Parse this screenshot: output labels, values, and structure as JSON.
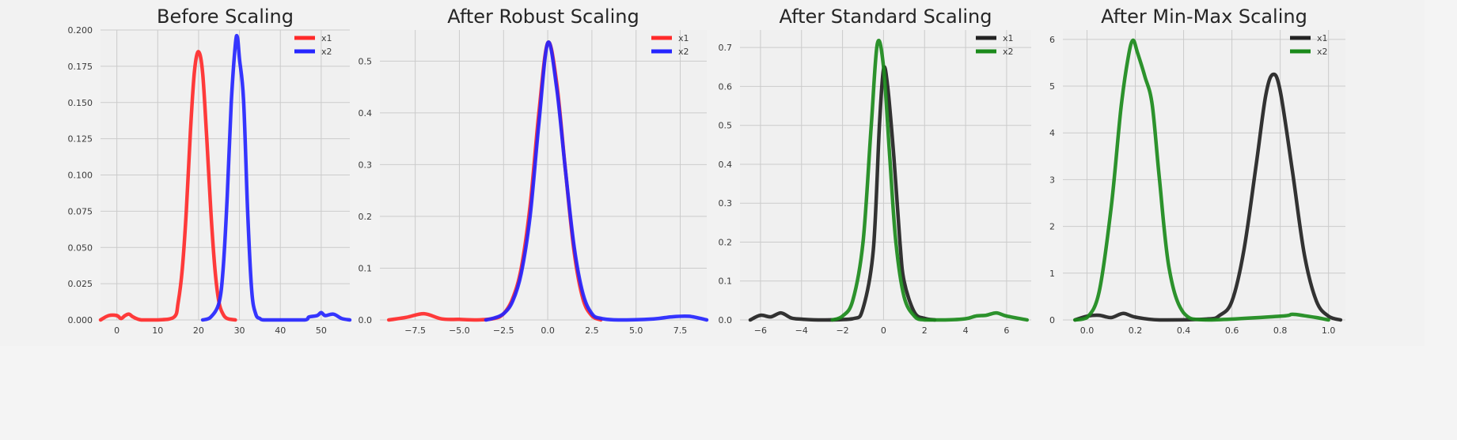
{
  "chart_data": [
    {
      "type": "line",
      "title": "Before Scaling",
      "xlabel": "",
      "ylabel": "",
      "xlim": [
        -4,
        57
      ],
      "ylim": [
        0,
        0.2
      ],
      "xticks": [
        0,
        10,
        20,
        30,
        40,
        50
      ],
      "yticks": [
        0.0,
        0.025,
        0.05,
        0.075,
        0.1,
        0.125,
        0.15,
        0.175,
        0.2
      ],
      "ytick_labels": [
        "0.000",
        "0.025",
        "0.050",
        "0.075",
        "0.100",
        "0.125",
        "0.150",
        "0.175",
        "0.200"
      ],
      "legend_position": "top-right",
      "series": [
        {
          "name": "x1",
          "color": "#ff2a2a",
          "x": [
            -4,
            -2,
            0,
            1,
            2,
            3,
            4,
            6,
            10,
            14,
            15,
            16,
            17,
            18,
            19,
            20,
            21,
            22,
            23,
            24,
            25,
            26,
            27,
            29
          ],
          "y": [
            0,
            0.003,
            0.003,
            0.001,
            0.003,
            0.004,
            0.002,
            0,
            0,
            0.002,
            0.012,
            0.035,
            0.075,
            0.13,
            0.172,
            0.185,
            0.17,
            0.125,
            0.075,
            0.035,
            0.012,
            0.004,
            0.001,
            0
          ]
        },
        {
          "name": "x2",
          "color": "#2525ff",
          "x": [
            21,
            23,
            25,
            26,
            27,
            28,
            29,
            29.5,
            30,
            31,
            32,
            33,
            34,
            35,
            36,
            40,
            46,
            47,
            49,
            50,
            51,
            53,
            55,
            57
          ],
          "y": [
            0,
            0.002,
            0.012,
            0.035,
            0.085,
            0.15,
            0.19,
            0.195,
            0.18,
            0.152,
            0.075,
            0.02,
            0.004,
            0.001,
            0,
            0,
            0,
            0.002,
            0.003,
            0.005,
            0.003,
            0.004,
            0.001,
            0
          ]
        }
      ]
    },
    {
      "type": "line",
      "title": "After Robust Scaling",
      "xlabel": "",
      "ylabel": "",
      "xlim": [
        -9.5,
        9
      ],
      "ylim": [
        0,
        0.56
      ],
      "xticks": [
        -7.5,
        -5.0,
        -2.5,
        0.0,
        2.5,
        5.0,
        7.5
      ],
      "xtick_labels": [
        "−7.5",
        "−5.0",
        "−2.5",
        "0.0",
        "2.5",
        "5.0",
        "7.5"
      ],
      "yticks": [
        0.0,
        0.1,
        0.2,
        0.3,
        0.4,
        0.5
      ],
      "ytick_labels": [
        "0.0",
        "0.1",
        "0.2",
        "0.3",
        "0.4",
        "0.5"
      ],
      "legend_position": "top-right",
      "series": [
        {
          "name": "x1",
          "color": "#ff2a2a",
          "x": [
            -9,
            -8,
            -7,
            -6,
            -5,
            -4,
            -3,
            -2.5,
            -2,
            -1.5,
            -1,
            -0.5,
            0,
            0.5,
            1,
            1.5,
            2,
            2.5,
            3
          ],
          "y": [
            0,
            0.005,
            0.012,
            0.002,
            0.001,
            0,
            0.003,
            0.012,
            0.04,
            0.1,
            0.22,
            0.4,
            0.535,
            0.46,
            0.29,
            0.13,
            0.04,
            0.008,
            0
          ]
        },
        {
          "name": "x2",
          "color": "#2525ff",
          "x": [
            -3.5,
            -3,
            -2.5,
            -2,
            -1.5,
            -1,
            -0.5,
            0,
            0.5,
            1,
            1.5,
            2,
            2.5,
            3,
            4,
            6,
            7,
            8,
            9
          ],
          "y": [
            0,
            0.004,
            0.012,
            0.035,
            0.09,
            0.2,
            0.38,
            0.535,
            0.45,
            0.29,
            0.14,
            0.05,
            0.012,
            0.003,
            0,
            0.002,
            0.006,
            0.007,
            0
          ]
        }
      ]
    },
    {
      "type": "line",
      "title": "After Standard Scaling",
      "xlabel": "",
      "ylabel": "",
      "xlim": [
        -7,
        7.2
      ],
      "ylim": [
        0,
        0.745
      ],
      "xticks": [
        -6,
        -4,
        -2,
        0,
        2,
        4,
        6
      ],
      "xtick_labels": [
        "−6",
        "−4",
        "−2",
        "0",
        "2",
        "4",
        "6"
      ],
      "yticks": [
        0.0,
        0.1,
        0.2,
        0.3,
        0.4,
        0.5,
        0.6,
        0.7
      ],
      "ytick_labels": [
        "0.0",
        "0.1",
        "0.2",
        "0.3",
        "0.4",
        "0.5",
        "0.6",
        "0.7"
      ],
      "legend_position": "top-right",
      "series": [
        {
          "name": "x1",
          "color": "#222222",
          "x": [
            -6.5,
            -6,
            -5.5,
            -5,
            -4.5,
            -4,
            -3,
            -1.5,
            -1,
            -0.5,
            -0.2,
            0,
            0.2,
            0.5,
            0.8,
            1,
            1.5,
            2,
            2.5
          ],
          "y": [
            0,
            0.012,
            0.008,
            0.018,
            0.005,
            0.002,
            0,
            0.003,
            0.03,
            0.18,
            0.5,
            0.645,
            0.6,
            0.42,
            0.2,
            0.1,
            0.02,
            0.004,
            0
          ]
        },
        {
          "name": "x2",
          "color": "#1b8a1b",
          "x": [
            -2.5,
            -2,
            -1.5,
            -1,
            -0.6,
            -0.3,
            0,
            0.3,
            0.6,
            1,
            1.5,
            2,
            3,
            4,
            4.5,
            5,
            5.5,
            6,
            7
          ],
          "y": [
            0,
            0.01,
            0.05,
            0.2,
            0.5,
            0.71,
            0.65,
            0.42,
            0.2,
            0.06,
            0.01,
            0,
            0,
            0.003,
            0.01,
            0.012,
            0.018,
            0.01,
            0
          ]
        }
      ]
    },
    {
      "type": "line",
      "title": "After Min-Max Scaling",
      "xlabel": "",
      "ylabel": "",
      "xlim": [
        -0.1,
        1.07
      ],
      "ylim": [
        0,
        6.2
      ],
      "xticks": [
        0.0,
        0.2,
        0.4,
        0.6,
        0.8,
        1.0
      ],
      "xtick_labels": [
        "0.0",
        "0.2",
        "0.4",
        "0.6",
        "0.8",
        "1.0"
      ],
      "yticks": [
        0,
        1,
        2,
        3,
        4,
        5,
        6
      ],
      "ytick_labels": [
        "0",
        "1",
        "2",
        "3",
        "4",
        "5",
        "6"
      ],
      "legend_position": "top-right",
      "series": [
        {
          "name": "x1",
          "color": "#222222",
          "x": [
            -0.05,
            0.0,
            0.05,
            0.1,
            0.15,
            0.2,
            0.3,
            0.5,
            0.55,
            0.6,
            0.65,
            0.7,
            0.74,
            0.77,
            0.8,
            0.85,
            0.9,
            0.95,
            1.0,
            1.05
          ],
          "y": [
            0,
            0.08,
            0.1,
            0.05,
            0.14,
            0.06,
            0,
            0.02,
            0.1,
            0.4,
            1.5,
            3.3,
            4.8,
            5.25,
            4.9,
            3.2,
            1.4,
            0.4,
            0.08,
            0
          ]
        },
        {
          "name": "x2",
          "color": "#1b8a1b",
          "x": [
            -0.05,
            0.0,
            0.05,
            0.1,
            0.14,
            0.17,
            0.19,
            0.21,
            0.24,
            0.27,
            0.3,
            0.34,
            0.4,
            0.5,
            0.8,
            0.85,
            0.9,
            0.95,
            1.0
          ],
          "y": [
            0,
            0.05,
            0.6,
            2.4,
            4.5,
            5.6,
            5.98,
            5.7,
            5.2,
            4.6,
            3.0,
            1.1,
            0.15,
            0,
            0.08,
            0.12,
            0.09,
            0.05,
            0
          ]
        }
      ]
    }
  ]
}
